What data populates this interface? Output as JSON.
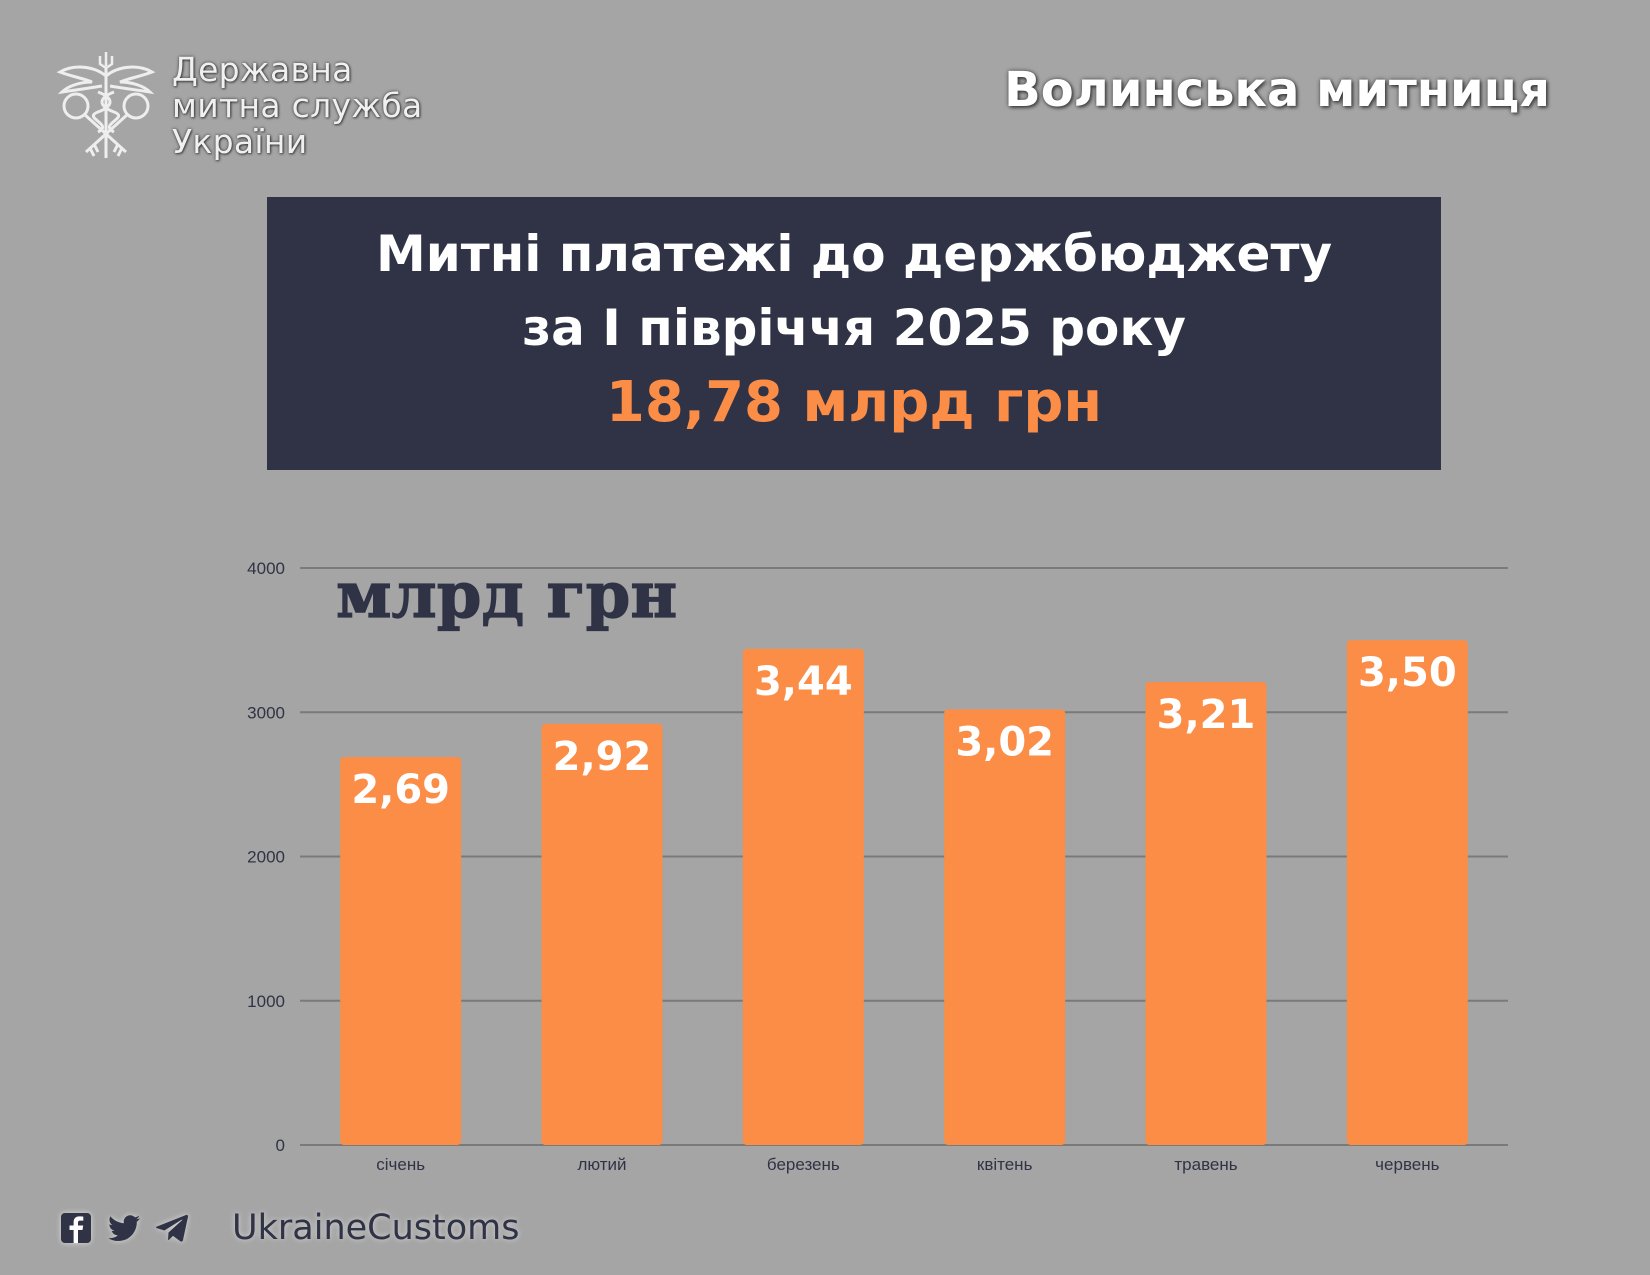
{
  "header": {
    "logo_lines": [
      "Державна",
      "митна служба",
      "України"
    ],
    "office": "Волинська митниця"
  },
  "title": {
    "line1": "Митні платежі до  держбюджету",
    "line2": "за І півріччя 2025 року",
    "total": "18,78 млрд грн"
  },
  "colors": {
    "background": "#a5a5a5",
    "title_box": "#2f3345",
    "accent": "#fb8d47",
    "bar": "#fb8d47",
    "gridline": "#7a7a7a",
    "axis_text": "#2f3345"
  },
  "chart_data": {
    "type": "bar",
    "title": "млрд грн",
    "categories": [
      "січень",
      "лютий",
      "березень",
      "квітень",
      "травень",
      "червень"
    ],
    "values": [
      2690,
      2920,
      3440,
      3020,
      3210,
      3500
    ],
    "data_labels": [
      "2,69",
      "2,92",
      "3,44",
      "3,02",
      "3,21",
      "3,50"
    ],
    "yticks": [
      "0",
      "1000",
      "2000",
      "3000",
      "4000"
    ],
    "ylim": [
      0,
      4000
    ],
    "grid": true,
    "xlabel": "",
    "ylabel": ""
  },
  "footer": {
    "icons": [
      "facebook-icon",
      "twitter-icon",
      "telegram-icon"
    ],
    "handle": "UkraineCustoms"
  }
}
